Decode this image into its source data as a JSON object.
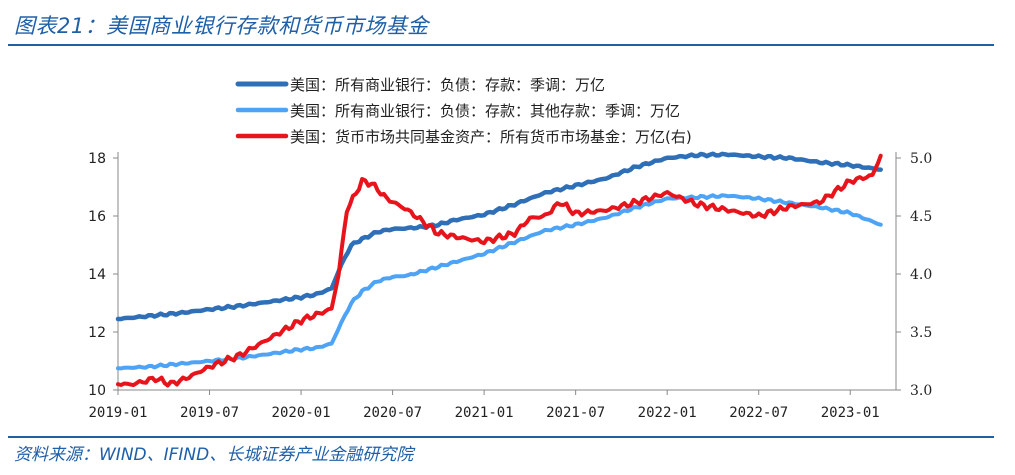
{
  "figure": {
    "title": "图表21：美国商业银行存款和货币市场基金",
    "source": "资料来源：WIND、IFIND、长城证券产业金融研究院"
  },
  "chart_data": {
    "type": "line",
    "title": "",
    "x_ticks": [
      "2019-01",
      "2019-07",
      "2020-01",
      "2020-07",
      "2021-01",
      "2021-07",
      "2022-01",
      "2022-07",
      "2023-01"
    ],
    "y_left": {
      "lim": [
        10,
        18
      ],
      "ticks": [
        "10",
        "12",
        "14",
        "16",
        "18"
      ]
    },
    "y_right": {
      "lim": [
        3.0,
        5.0
      ],
      "ticks": [
        "3.0",
        "3.5",
        "4.0",
        "4.5",
        "5.0"
      ]
    },
    "legend_position": "top",
    "series": [
      {
        "name": "美国：所有商业银行：负债：存款：季调：万亿",
        "axis": "left",
        "color": "#2e6fb7",
        "width": 4.5,
        "points": [
          [
            "2019-01-01",
            12.45
          ],
          [
            "2019-03-01",
            12.55
          ],
          [
            "2019-05-01",
            12.65
          ],
          [
            "2019-07-01",
            12.78
          ],
          [
            "2019-09-01",
            12.9
          ],
          [
            "2019-11-01",
            13.05
          ],
          [
            "2020-01-01",
            13.2
          ],
          [
            "2020-02-01",
            13.3
          ],
          [
            "2020-03-01",
            13.5
          ],
          [
            "2020-03-20",
            14.3
          ],
          [
            "2020-04-10",
            15.0
          ],
          [
            "2020-05-01",
            15.2
          ],
          [
            "2020-06-01",
            15.45
          ],
          [
            "2020-07-01",
            15.55
          ],
          [
            "2020-08-01",
            15.58
          ],
          [
            "2020-09-01",
            15.62
          ],
          [
            "2020-10-01",
            15.7
          ],
          [
            "2020-11-01",
            15.85
          ],
          [
            "2021-01-01",
            16.05
          ],
          [
            "2021-03-01",
            16.4
          ],
          [
            "2021-05-01",
            16.8
          ],
          [
            "2021-07-01",
            17.05
          ],
          [
            "2021-09-01",
            17.3
          ],
          [
            "2021-11-01",
            17.7
          ],
          [
            "2022-01-01",
            18.0
          ],
          [
            "2022-03-01",
            18.1
          ],
          [
            "2022-05-01",
            18.12
          ],
          [
            "2022-07-01",
            18.05
          ],
          [
            "2022-09-01",
            18.0
          ],
          [
            "2022-11-01",
            17.85
          ],
          [
            "2023-01-01",
            17.75
          ],
          [
            "2023-03-01",
            17.6
          ]
        ]
      },
      {
        "name": "美国：所有商业银行：负债：存款：其他存款：季调：万亿",
        "axis": "left",
        "color": "#4da3f5",
        "width": 4,
        "points": [
          [
            "2019-01-01",
            10.75
          ],
          [
            "2019-03-01",
            10.8
          ],
          [
            "2019-05-01",
            10.9
          ],
          [
            "2019-07-01",
            11.0
          ],
          [
            "2019-09-01",
            11.1
          ],
          [
            "2019-11-01",
            11.25
          ],
          [
            "2020-01-01",
            11.4
          ],
          [
            "2020-02-01",
            11.45
          ],
          [
            "2020-03-01",
            11.6
          ],
          [
            "2020-03-20",
            12.3
          ],
          [
            "2020-04-10",
            13.0
          ],
          [
            "2020-05-01",
            13.4
          ],
          [
            "2020-06-01",
            13.75
          ],
          [
            "2020-07-01",
            13.9
          ],
          [
            "2020-08-01",
            13.95
          ],
          [
            "2020-09-01",
            14.1
          ],
          [
            "2020-10-01",
            14.25
          ],
          [
            "2020-11-01",
            14.4
          ],
          [
            "2021-01-01",
            14.7
          ],
          [
            "2021-03-01",
            15.1
          ],
          [
            "2021-05-01",
            15.5
          ],
          [
            "2021-07-01",
            15.7
          ],
          [
            "2021-09-01",
            15.95
          ],
          [
            "2021-11-01",
            16.3
          ],
          [
            "2022-01-01",
            16.6
          ],
          [
            "2022-03-01",
            16.65
          ],
          [
            "2022-05-01",
            16.7
          ],
          [
            "2022-07-01",
            16.6
          ],
          [
            "2022-09-01",
            16.45
          ],
          [
            "2022-11-01",
            16.3
          ],
          [
            "2023-01-01",
            16.1
          ],
          [
            "2023-03-01",
            15.7
          ]
        ]
      },
      {
        "name": "美国：货币市场共同基金资产：所有货币市场基金：万亿(右)",
        "axis": "right",
        "color": "#e8141c",
        "width": 4,
        "points": [
          [
            "2019-01-01",
            3.05
          ],
          [
            "2019-02-01",
            3.05
          ],
          [
            "2019-03-15",
            3.1
          ],
          [
            "2019-04-15",
            3.05
          ],
          [
            "2019-05-15",
            3.1
          ],
          [
            "2019-07-01",
            3.2
          ],
          [
            "2019-09-01",
            3.3
          ],
          [
            "2019-11-01",
            3.45
          ],
          [
            "2020-01-01",
            3.6
          ],
          [
            "2020-02-01",
            3.65
          ],
          [
            "2020-03-01",
            3.7
          ],
          [
            "2020-03-15",
            4.0
          ],
          [
            "2020-04-01",
            4.55
          ],
          [
            "2020-05-01",
            4.8
          ],
          [
            "2020-05-20",
            4.78
          ],
          [
            "2020-06-20",
            4.65
          ],
          [
            "2020-08-01",
            4.55
          ],
          [
            "2020-10-01",
            4.35
          ],
          [
            "2020-12-01",
            4.3
          ],
          [
            "2021-01-01",
            4.28
          ],
          [
            "2021-03-01",
            4.35
          ],
          [
            "2021-04-01",
            4.48
          ],
          [
            "2021-05-01",
            4.5
          ],
          [
            "2021-06-01",
            4.62
          ],
          [
            "2021-07-01",
            4.52
          ],
          [
            "2021-09-01",
            4.55
          ],
          [
            "2021-11-01",
            4.62
          ],
          [
            "2022-01-01",
            4.7
          ],
          [
            "2022-03-01",
            4.6
          ],
          [
            "2022-05-01",
            4.55
          ],
          [
            "2022-07-01",
            4.5
          ],
          [
            "2022-09-01",
            4.58
          ],
          [
            "2022-11-01",
            4.62
          ],
          [
            "2023-01-01",
            4.8
          ],
          [
            "2023-02-15",
            4.85
          ],
          [
            "2023-03-01",
            5.02
          ]
        ]
      }
    ]
  }
}
